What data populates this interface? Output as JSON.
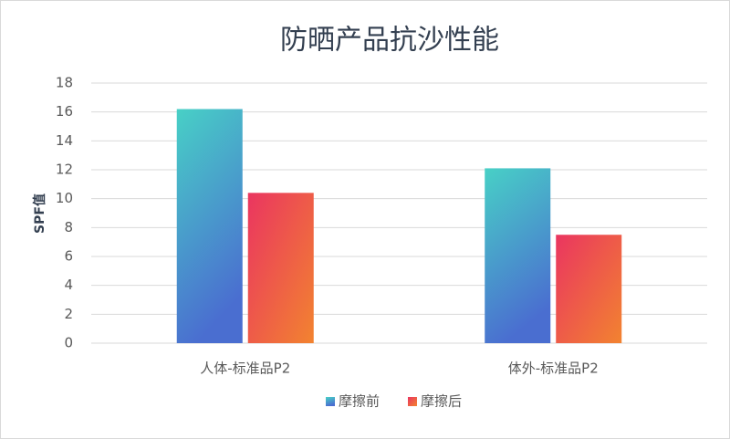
{
  "chart_data": {
    "type": "bar",
    "title": "防晒产品抗沙性能",
    "y_label": "SPF值",
    "categories": [
      "人体-标准品P2",
      "体外-标准品P2"
    ],
    "series": [
      {
        "name": "摩擦前",
        "color": "#48d0c6",
        "color_to": "#4a6ed0",
        "values": [
          16.2,
          12.1
        ]
      },
      {
        "name": "摩擦后",
        "color": "#ea3560",
        "color_to": "#f28330",
        "values": [
          10.4,
          7.5
        ]
      }
    ],
    "ylim": [
      0,
      18
    ],
    "yticks": [
      0,
      2,
      4,
      6,
      8,
      10,
      12,
      14,
      16,
      18
    ],
    "grid": true,
    "legend": "bottom"
  }
}
